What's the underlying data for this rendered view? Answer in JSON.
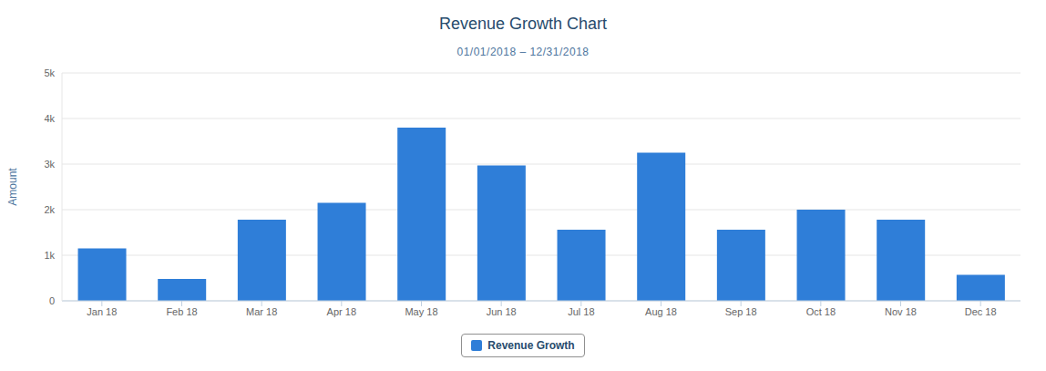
{
  "chart_data": {
    "type": "bar",
    "title": "Revenue Growth Chart",
    "subtitle": "01/01/2018 – 12/31/2018",
    "y_label": "Amount",
    "categories": [
      "Jan 18",
      "Feb 18",
      "Mar 18",
      "Apr 18",
      "May 18",
      "Jun 18",
      "Jul 18",
      "Aug 18",
      "Sep 18",
      "Oct 18",
      "Nov 18",
      "Dec 18"
    ],
    "series": [
      {
        "name": "Revenue Growth",
        "color": "#2f7ed8",
        "values": [
          1150,
          480,
          1780,
          2150,
          3800,
          2970,
          1560,
          3250,
          1560,
          2000,
          1780,
          570
        ]
      }
    ],
    "ylim": [
      0,
      5000
    ],
    "yticks": [
      0,
      {
        "value": 1000,
        "label": "1k"
      },
      {
        "value": 2000,
        "label": "2k"
      },
      {
        "value": 3000,
        "label": "3k"
      },
      {
        "value": 4000,
        "label": "4k"
      },
      {
        "value": 5000,
        "label": "5k"
      }
    ],
    "grid": true,
    "legend": "bottom"
  }
}
